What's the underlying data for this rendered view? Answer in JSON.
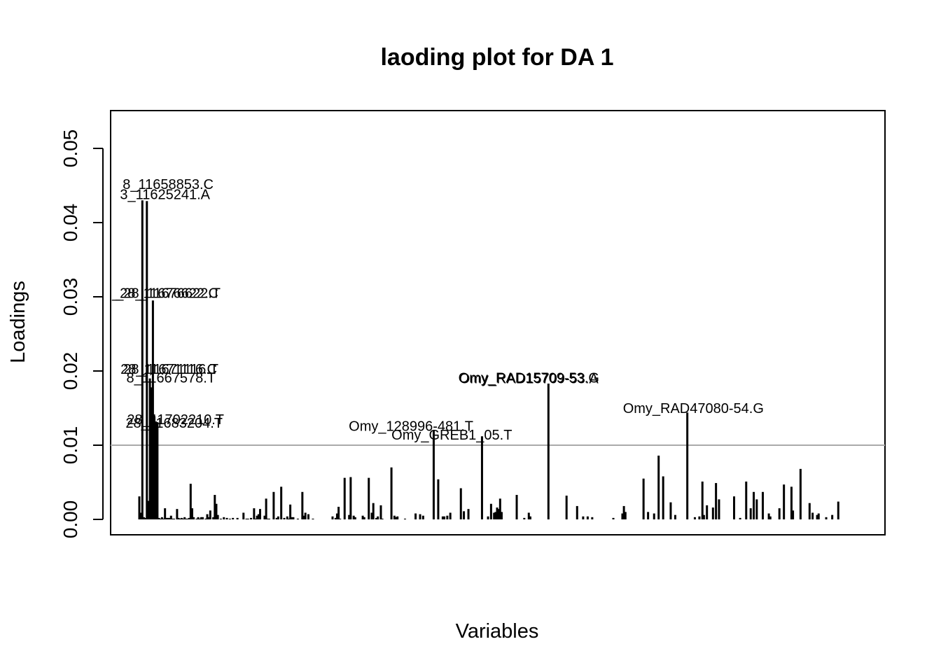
{
  "chart_data": {
    "type": "bar",
    "title": "laoding plot for DA 1",
    "xlabel": "Variables",
    "ylabel": "Loadings",
    "ylim": [
      0,
      0.05
    ],
    "yticks": [
      "0.00",
      "0.01",
      "0.02",
      "0.03",
      "0.04",
      "0.05"
    ],
    "threshold": 0.01,
    "threshold_color": "#aaaaaa",
    "bar_color": "#000000",
    "grid": false,
    "legend": "none",
    "x_range": [
      1,
      475
    ],
    "values": [
      0.0031,
      0.0009,
      0.043,
      0.0003,
      0.0002,
      0.0429,
      0.0025,
      0.019,
      0.0178,
      0.0295,
      0.0139,
      0.0132,
      0.0131,
      0.0002,
      0.0001,
      0.0003,
      0.0001,
      0.0015,
      0.0002,
      0.0002,
      0.0002,
      0.0005,
      0.0001,
      0.0001,
      0.0,
      0.0014,
      0.0002,
      0.0001,
      0.0002,
      0.0001,
      0.0003,
      0.0001,
      0.0001,
      0.0002,
      0.0048,
      0.0015,
      0.0003,
      0.0,
      0.0001,
      0.0003,
      0.0001,
      0.0003,
      0.0003,
      0.0,
      0.0001,
      0.0007,
      0.0003,
      0.0012,
      0.0,
      0.0003,
      0.0033,
      0.0021,
      0.0006,
      0.0,
      0.0001,
      0.0,
      0.0003,
      0.0,
      0.0002,
      0.0,
      0.0001,
      0.0,
      0.0002,
      0.0,
      0.0,
      0.0002,
      0.0,
      0.0,
      0.0,
      0.0009,
      0.0,
      0.0001,
      0.0001,
      0.0,
      0.0002,
      0.0,
      0.0015,
      0.0001,
      0.0005,
      0.0007,
      0.0014,
      0.0,
      0.0,
      0.0005,
      0.0028,
      0.0001,
      0.0001,
      0.0,
      0.0,
      0.0037,
      0.0,
      0.0002,
      0.0004,
      0.0,
      0.0044,
      0.0,
      0.0002,
      0.0,
      0.0004,
      0.0001,
      0.002,
      0.0003,
      0.0003,
      0.0,
      0.0,
      0.0001,
      0.0,
      0.0,
      0.0037,
      0.0005,
      0.0009,
      0.0,
      0.0007,
      0.0,
      0.0,
      0.0001,
      0.0,
      0.0,
      0.0,
      0.0,
      0.0,
      0.0,
      0.0,
      0.0,
      0.0,
      0.0,
      0.0,
      0.0,
      0.0004,
      0.0,
      0.0002,
      0.0008,
      0.0017,
      0.0001,
      0.0,
      0.0,
      0.0056,
      0.0,
      0.0,
      0.0006,
      0.0057,
      0.0,
      0.0005,
      0.0003,
      0.0,
      0.0,
      0.0,
      0.0,
      0.0005,
      0.0003,
      0.0,
      0.0,
      0.0056,
      0.0,
      0.0009,
      0.0022,
      0.0,
      0.0002,
      0.0004,
      0.0,
      0.0019,
      0.0001,
      0.0,
      0.0,
      0.0,
      0.0,
      0.0,
      0.007,
      0.0,
      0.0005,
      0.0003,
      0.0004,
      0.0,
      0.0,
      0.0,
      0.0,
      0.0001,
      0.0,
      0.0,
      0.0,
      0.0,
      0.0,
      0.0,
      0.0008,
      0.0,
      0.0,
      0.0007,
      0.0,
      0.0005,
      0.0,
      0.0,
      0.0,
      0.0,
      0.0,
      0.0,
      0.012,
      0.0,
      0.0,
      0.0054,
      0.0,
      0.0,
      0.0004,
      0.0004,
      0.0,
      0.0005,
      0.0,
      0.0009,
      0.0,
      0.0,
      0.0,
      0.0,
      0.0,
      0.0,
      0.0042,
      0.0,
      0.0011,
      0.0,
      0.0,
      0.0014,
      0.0,
      0.0,
      0.0,
      0.0,
      0.0,
      0.0,
      0.0,
      0.0,
      0.0112,
      0.0,
      0.0,
      0.0,
      0.0004,
      0.0,
      0.0021,
      0.0,
      0.0009,
      0.001,
      0.0016,
      0.0014,
      0.0028,
      0.001,
      0.0,
      0.0,
      0.0,
      0.0,
      0.0,
      0.0,
      0.0,
      0.0,
      0.0,
      0.0033,
      0.0,
      0.0,
      0.0,
      0.0,
      0.0002,
      0.0,
      0.0,
      0.0009,
      0.0004,
      0.0,
      0.0,
      0.0,
      0.0,
      0.0,
      0.0,
      0.0,
      0.0,
      0.0,
      0.0,
      0.0,
      0.0183,
      0.0,
      0.0,
      0.0,
      0.0,
      0.0,
      0.0,
      0.0,
      0.0,
      0.0,
      0.0,
      0.0,
      0.0032,
      0.0,
      0.0,
      0.0,
      0.0,
      0.0,
      0.0,
      0.0018,
      0.0,
      0.0,
      0.0,
      0.0004,
      0.0,
      0.0,
      0.0004,
      0.0,
      0.0,
      0.0003,
      0.0,
      0.0,
      0.0,
      0.0,
      0.0,
      0.0,
      0.0,
      0.0,
      0.0,
      0.0,
      0.0,
      0.0,
      0.0,
      0.0002,
      0.0,
      0.0,
      0.0,
      0.0,
      0.0,
      0.0008,
      0.0018,
      0.001,
      0.0,
      0.0,
      0.0,
      0.0,
      0.0,
      0.0,
      0.0,
      0.0,
      0.0,
      0.0,
      0.0,
      0.0055,
      0.0,
      0.0,
      0.001,
      0.0,
      0.0,
      0.0,
      0.0008,
      0.0,
      0.0,
      0.0086,
      0.0,
      0.0,
      0.0058,
      0.0,
      0.0,
      0.0,
      0.0,
      0.0023,
      0.0,
      0.0,
      0.0006,
      0.0,
      0.0,
      0.0,
      0.0,
      0.0,
      0.0,
      0.0,
      0.0144,
      0.0,
      0.0,
      0.0,
      0.0,
      0.0003,
      0.0,
      0.0,
      0.0004,
      0.0,
      0.0051,
      0.0006,
      0.0,
      0.0019,
      0.0,
      0.0,
      0.0,
      0.0016,
      0.0,
      0.0049,
      0.0,
      0.0027,
      0.0,
      0.0,
      0.0,
      0.0,
      0.0,
      0.0,
      0.0,
      0.0,
      0.0,
      0.0031,
      0.0,
      0.0,
      0.0,
      0.0002,
      0.0,
      0.0,
      0.0,
      0.0051,
      0.0,
      0.0,
      0.0015,
      0.0,
      0.0037,
      0.0,
      0.0027,
      0.0,
      0.0,
      0.0,
      0.0037,
      0.0,
      0.0,
      0.0,
      0.0008,
      0.0004,
      0.0,
      0.0,
      0.0,
      0.0,
      0.0,
      0.0015,
      0.0,
      0.0,
      0.0047,
      0.0,
      0.0,
      0.0,
      0.0,
      0.0044,
      0.0012,
      0.0,
      0.0,
      0.0,
      0.0,
      0.0068,
      0.0,
      0.0,
      0.0,
      0.0,
      0.0,
      0.0022,
      0.0,
      0.0009,
      0.0,
      0.0,
      0.0006,
      0.0008,
      0.0,
      0.0,
      0.0,
      0.0,
      0.0003,
      0.0,
      0.0,
      0.0,
      0.0006,
      0.0,
      0.0,
      0.0,
      0.0024,
      0.0,
      0.0,
      0.0,
      0.0,
      0.0,
      0.0,
      0.0,
      0.0,
      0.0,
      0.0,
      0.0,
      0.0,
      0.0,
      0.0,
      0.0,
      0.0,
      0.0,
      0.0,
      0.0,
      0.0,
      0.0,
      0.0,
      0.0,
      0.0,
      0.0,
      0.0,
      0.0,
      0.0,
      0.0,
      0.0,
      0.0,
      0.0,
      0.0,
      0.0,
      0.0,
      0.0,
      0.0,
      0.0,
      0.0,
      0.0,
      0.0,
      0.0,
      0.0,
      0.0,
      0.0,
      0.0,
      0.0,
      0.0,
      0.0,
      0.0,
      0.0,
      0.0,
      0.0,
      0.0,
      0.0,
      0.0,
      0.0,
      0.0,
      0.0,
      0.0,
      0.0,
      0.0,
      0.0
    ],
    "annotations": [
      {
        "text": "8_11658853.C",
        "x": 6,
        "y": 0.0452
      },
      {
        "text": "3_11625241.A",
        "x": 5,
        "y": 0.0438
      },
      {
        "text": "_28_11676622.T",
        "x": 11,
        "y": 0.0305
      },
      {
        "text": "_28_11676622.C",
        "x": 11,
        "y": 0.0305
      },
      {
        "text": "28_11671116.T",
        "x": 11,
        "y": 0.0203
      },
      {
        "text": "28_11671116.C",
        "x": 11,
        "y": 0.0203
      },
      {
        "text": "8_11667578.T",
        "x": 11,
        "y": 0.0191
      },
      {
        "text": "28_11702210.T",
        "x": 13,
        "y": 0.0135
      },
      {
        "text": "28_11683204.T",
        "x": 13,
        "y": 0.013
      },
      {
        "text": "Omy_RAD15709-53.G",
        "x": 259,
        "y": 0.0191
      },
      {
        "text": "Omy_RAD15709-53.A",
        "x": 259,
        "y": 0.019
      },
      {
        "text": "Omy_RAD47080-54.G",
        "x": 368,
        "y": 0.015
      },
      {
        "text": "Omy_128996-481.T",
        "x": 181,
        "y": 0.0126
      },
      {
        "text": "Omy_GREB1_05.T",
        "x": 208,
        "y": 0.0114
      }
    ]
  }
}
